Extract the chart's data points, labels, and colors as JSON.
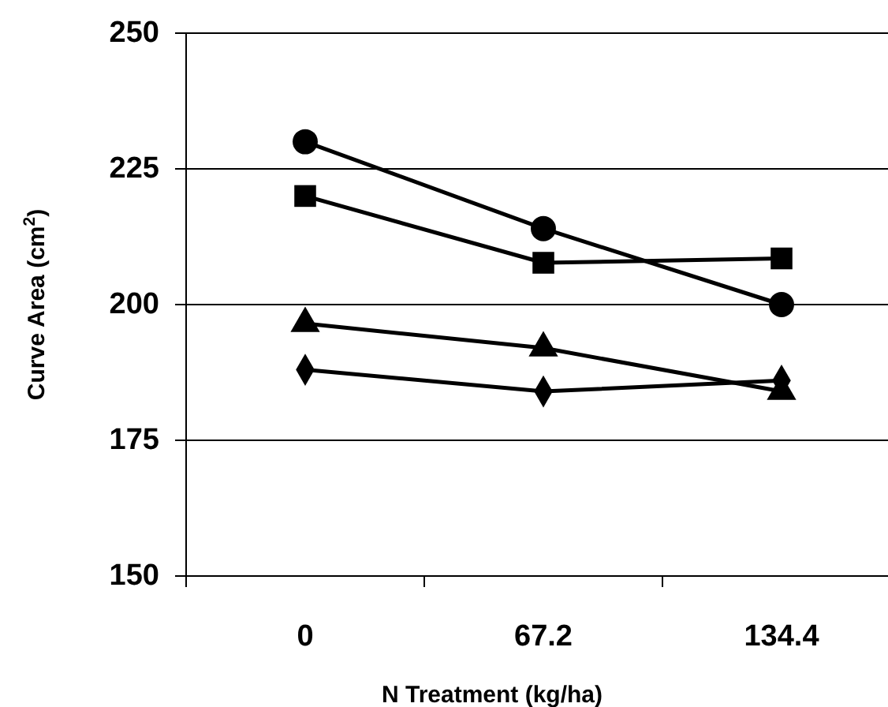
{
  "chart_data": {
    "type": "line",
    "xlabel": "N Treatment (kg/ha)",
    "ylabel": "Curve Area (cm$^{2}$)",
    "categories": [
      "0",
      "67.2",
      "134.4"
    ],
    "ylim": [
      150,
      250
    ],
    "yticks": [
      150,
      175,
      200,
      225,
      250
    ],
    "grid": "y",
    "series": [
      {
        "color": "#000000",
        "marker": "circle",
        "values": [
          230,
          214,
          200
        ]
      },
      {
        "color": "#000000",
        "marker": "square",
        "values": [
          220,
          207.7,
          208.5
        ]
      },
      {
        "color": "#000000",
        "marker": "triangle",
        "values": [
          196.5,
          192,
          184
        ]
      },
      {
        "color": "#000000",
        "marker": "diamond",
        "values": [
          188,
          184,
          186
        ]
      }
    ]
  }
}
